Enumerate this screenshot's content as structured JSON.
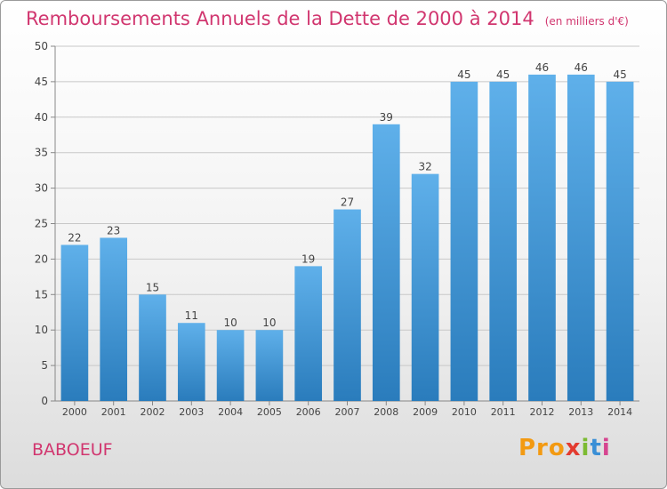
{
  "title": "Remboursements Annuels de la Dette de 2000 à 2014",
  "unit": "(en milliers d'€)",
  "commune": "BABOEUF",
  "logo": {
    "p1": "Pro",
    "p2": "x",
    "p3": "i",
    "p4": "t",
    "p5": "i"
  },
  "colors": {
    "title": "#d1366f",
    "bar_light": "#5fb0ea",
    "bar_dark": "#2a7cbc",
    "grid": "#c8c8c8"
  },
  "chart_data": {
    "type": "bar",
    "title": "Remboursements Annuels de la Dette de 2000 à 2014",
    "subtitle": "(en milliers d'€)",
    "categories": [
      "2000",
      "2001",
      "2002",
      "2003",
      "2004",
      "2005",
      "2006",
      "2007",
      "2008",
      "2009",
      "2010",
      "2011",
      "2012",
      "2013",
      "2014"
    ],
    "values": [
      22,
      23,
      15,
      11,
      10,
      10,
      19,
      27,
      39,
      32,
      45,
      45,
      46,
      46,
      45
    ],
    "ylim": [
      0,
      50
    ],
    "yticks": [
      0,
      5,
      10,
      15,
      20,
      25,
      30,
      35,
      40,
      45,
      50
    ],
    "grid": true,
    "legend": "none",
    "data_labels": true
  }
}
